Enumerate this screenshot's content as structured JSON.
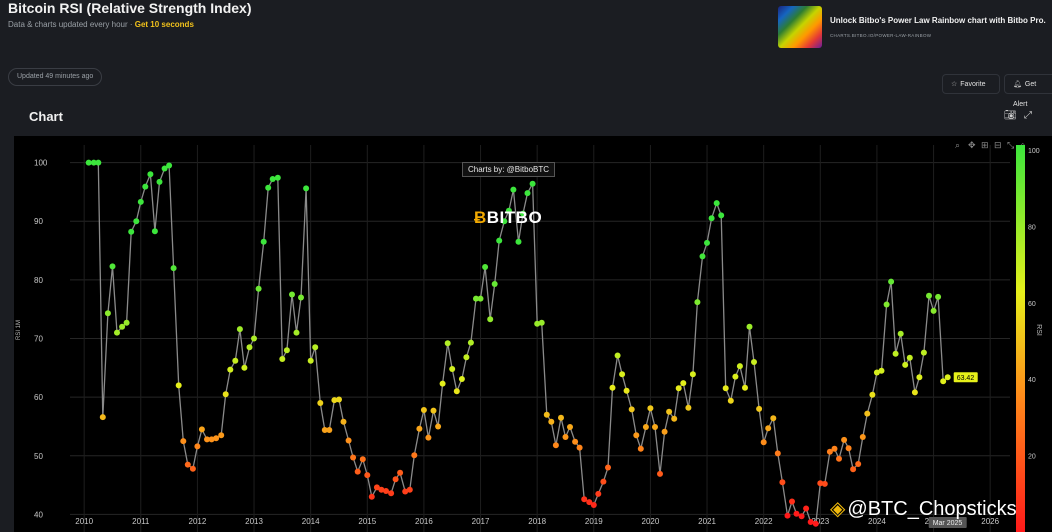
{
  "header": {
    "title": "Bitcoin RSI (Relative Strength Index)",
    "subtitle": "Data & charts updated every hour ·",
    "subtitle_accent": "Get 10 seconds"
  },
  "promo": {
    "title": "Unlock Bitbo's Power Law Rainbow chart with Bitbo Pro.",
    "url": "CHARTS.BITBO.IO/POWER-LAW-RAINBOW"
  },
  "updated": "Updated 49 minutes ago",
  "actions": {
    "favorite": "Favorite",
    "alert": "Get Alert"
  },
  "chart_section_label": "Chart",
  "icons": {
    "camera": "camera-icon",
    "expand": "expand-icon",
    "zoom": "zoom-icon",
    "pan": "pan-icon",
    "favorite": "star-icon",
    "alert": "bell-icon"
  },
  "watermark": {
    "credit": "Charts by: @BitboBTC",
    "logo_text": "BITBO",
    "social": "@BTC_Chopsticks"
  },
  "chart_data": {
    "type": "scatter",
    "title": "",
    "xlabel": "",
    "ylabel": "RSI 1M",
    "ylim": [
      37,
      103
    ],
    "xlim": [
      2009.75,
      2026.35
    ],
    "yticks": [
      40,
      50,
      60,
      70,
      80,
      90,
      100
    ],
    "xticks": [
      "2010",
      "2011",
      "2012",
      "2013",
      "2014",
      "2015",
      "2016",
      "2017",
      "2018",
      "2019",
      "2020",
      "2021",
      "2022",
      "2023",
      "2024",
      "2025",
      "2026"
    ],
    "colorbar": {
      "label": "RSI",
      "ticks": [
        20,
        40,
        60,
        80,
        100
      ],
      "colors": [
        "#ff1a1a",
        "#ff8a1a",
        "#e6f01a",
        "#3ce63c"
      ]
    },
    "last_value_label": "63.42",
    "last_date_label": "Mar 2025",
    "points": [
      [
        2010.08,
        100
      ],
      [
        2010.17,
        100
      ],
      [
        2010.25,
        100
      ],
      [
        2010.33,
        56.6
      ],
      [
        2010.42,
        74.3
      ],
      [
        2010.5,
        82.3
      ],
      [
        2010.58,
        71
      ],
      [
        2010.67,
        72
      ],
      [
        2010.75,
        72.7
      ],
      [
        2010.83,
        88.2
      ],
      [
        2010.92,
        90
      ],
      [
        2011.0,
        93.3
      ],
      [
        2011.08,
        95.9
      ],
      [
        2011.17,
        98
      ],
      [
        2011.25,
        88.3
      ],
      [
        2011.33,
        96.7
      ],
      [
        2011.42,
        99
      ],
      [
        2011.5,
        99.5
      ],
      [
        2011.58,
        82
      ],
      [
        2011.67,
        62
      ],
      [
        2011.75,
        52.5
      ],
      [
        2011.83,
        48.5
      ],
      [
        2011.92,
        47.8
      ],
      [
        2012.0,
        51.6
      ],
      [
        2012.08,
        54.5
      ],
      [
        2012.17,
        52.8
      ],
      [
        2012.25,
        52.8
      ],
      [
        2012.33,
        53
      ],
      [
        2012.42,
        53.5
      ],
      [
        2012.5,
        60.5
      ],
      [
        2012.58,
        64.7
      ],
      [
        2012.67,
        66.2
      ],
      [
        2012.75,
        71.6
      ],
      [
        2012.83,
        65
      ],
      [
        2012.92,
        68.5
      ],
      [
        2013.0,
        70
      ],
      [
        2013.08,
        78.5
      ],
      [
        2013.17,
        86.5
      ],
      [
        2013.25,
        95.7
      ],
      [
        2013.33,
        97.2
      ],
      [
        2013.42,
        97.4
      ],
      [
        2013.5,
        66.5
      ],
      [
        2013.58,
        68
      ],
      [
        2013.67,
        77.5
      ],
      [
        2013.75,
        71
      ],
      [
        2013.83,
        77
      ],
      [
        2013.92,
        95.6
      ],
      [
        2014.0,
        66.2
      ],
      [
        2014.08,
        68.5
      ],
      [
        2014.17,
        59
      ],
      [
        2014.25,
        54.4
      ],
      [
        2014.33,
        54.4
      ],
      [
        2014.42,
        59.5
      ],
      [
        2014.5,
        59.6
      ],
      [
        2014.58,
        55.8
      ],
      [
        2014.67,
        52.6
      ],
      [
        2014.75,
        49.7
      ],
      [
        2014.83,
        47.3
      ],
      [
        2014.92,
        49.4
      ],
      [
        2015.0,
        46.7
      ],
      [
        2015.08,
        43
      ],
      [
        2015.17,
        44.6
      ],
      [
        2015.25,
        44.2
      ],
      [
        2015.33,
        44
      ],
      [
        2015.42,
        43.6
      ],
      [
        2015.5,
        46
      ],
      [
        2015.58,
        47.1
      ],
      [
        2015.67,
        43.9
      ],
      [
        2015.75,
        44.2
      ],
      [
        2015.83,
        50.1
      ],
      [
        2015.92,
        54.6
      ],
      [
        2016.0,
        57.8
      ],
      [
        2016.08,
        53.1
      ],
      [
        2016.17,
        57.7
      ],
      [
        2016.25,
        55
      ],
      [
        2016.33,
        62.3
      ],
      [
        2016.42,
        69.2
      ],
      [
        2016.5,
        64.8
      ],
      [
        2016.58,
        61
      ],
      [
        2016.67,
        63.1
      ],
      [
        2016.75,
        66.8
      ],
      [
        2016.83,
        69.3
      ],
      [
        2016.92,
        76.8
      ],
      [
        2017.0,
        76.8
      ],
      [
        2017.08,
        82.2
      ],
      [
        2017.17,
        73.3
      ],
      [
        2017.25,
        79.3
      ],
      [
        2017.33,
        86.7
      ],
      [
        2017.42,
        90
      ],
      [
        2017.5,
        91.8
      ],
      [
        2017.58,
        95.4
      ],
      [
        2017.67,
        86.5
      ],
      [
        2017.75,
        91.3
      ],
      [
        2017.83,
        94.8
      ],
      [
        2017.92,
        96.4
      ],
      [
        2018.0,
        72.5
      ],
      [
        2018.08,
        72.7
      ],
      [
        2018.17,
        57
      ],
      [
        2018.25,
        55.8
      ],
      [
        2018.33,
        51.8
      ],
      [
        2018.42,
        56.5
      ],
      [
        2018.5,
        53.2
      ],
      [
        2018.58,
        54.9
      ],
      [
        2018.67,
        52.4
      ],
      [
        2018.75,
        51.4
      ],
      [
        2018.83,
        42.6
      ],
      [
        2018.92,
        42.1
      ],
      [
        2019.0,
        41.6
      ],
      [
        2019.08,
        43.5
      ],
      [
        2019.17,
        45.6
      ],
      [
        2019.25,
        48
      ],
      [
        2019.33,
        61.6
      ],
      [
        2019.42,
        67.1
      ],
      [
        2019.5,
        63.9
      ],
      [
        2019.58,
        61.1
      ],
      [
        2019.67,
        57.9
      ],
      [
        2019.75,
        53.5
      ],
      [
        2019.83,
        51.2
      ],
      [
        2019.92,
        54.9
      ],
      [
        2020.0,
        58.1
      ],
      [
        2020.08,
        54.9
      ],
      [
        2020.17,
        46.9
      ],
      [
        2020.25,
        54.1
      ],
      [
        2020.33,
        57.5
      ],
      [
        2020.42,
        56.3
      ],
      [
        2020.5,
        61.5
      ],
      [
        2020.58,
        62.4
      ],
      [
        2020.67,
        58.2
      ],
      [
        2020.75,
        63.9
      ],
      [
        2020.83,
        76.2
      ],
      [
        2020.92,
        84
      ],
      [
        2021.0,
        86.3
      ],
      [
        2021.08,
        90.5
      ],
      [
        2021.17,
        93.1
      ],
      [
        2021.25,
        91
      ],
      [
        2021.33,
        61.5
      ],
      [
        2021.42,
        59.4
      ],
      [
        2021.5,
        63.5
      ],
      [
        2021.58,
        65.3
      ],
      [
        2021.67,
        61.6
      ],
      [
        2021.75,
        72
      ],
      [
        2021.83,
        66
      ],
      [
        2021.92,
        58
      ],
      [
        2022.0,
        52.3
      ],
      [
        2022.08,
        54.7
      ],
      [
        2022.17,
        56.4
      ],
      [
        2022.25,
        50.4
      ],
      [
        2022.33,
        45.5
      ],
      [
        2022.42,
        39.8
      ],
      [
        2022.5,
        42.2
      ],
      [
        2022.58,
        40.1
      ],
      [
        2022.67,
        39.7
      ],
      [
        2022.75,
        41
      ],
      [
        2022.83,
        38.7
      ],
      [
        2022.92,
        38.4
      ],
      [
        2023.0,
        45.3
      ],
      [
        2023.08,
        45.2
      ],
      [
        2023.17,
        50.7
      ],
      [
        2023.25,
        51.2
      ],
      [
        2023.33,
        49.5
      ],
      [
        2023.42,
        52.7
      ],
      [
        2023.5,
        51.3
      ],
      [
        2023.58,
        47.7
      ],
      [
        2023.67,
        48.6
      ],
      [
        2023.75,
        53.2
      ],
      [
        2023.83,
        57.2
      ],
      [
        2023.92,
        60.4
      ],
      [
        2024.0,
        64.2
      ],
      [
        2024.08,
        64.5
      ],
      [
        2024.17,
        75.8
      ],
      [
        2024.25,
        79.7
      ],
      [
        2024.33,
        67.4
      ],
      [
        2024.42,
        70.8
      ],
      [
        2024.5,
        65.5
      ],
      [
        2024.58,
        66.7
      ],
      [
        2024.67,
        60.8
      ],
      [
        2024.75,
        63.4
      ],
      [
        2024.83,
        67.6
      ],
      [
        2024.92,
        77.3
      ],
      [
        2025.0,
        74.7
      ],
      [
        2025.08,
        77.1
      ],
      [
        2025.17,
        62.7
      ],
      [
        2025.25,
        63.4
      ]
    ]
  }
}
